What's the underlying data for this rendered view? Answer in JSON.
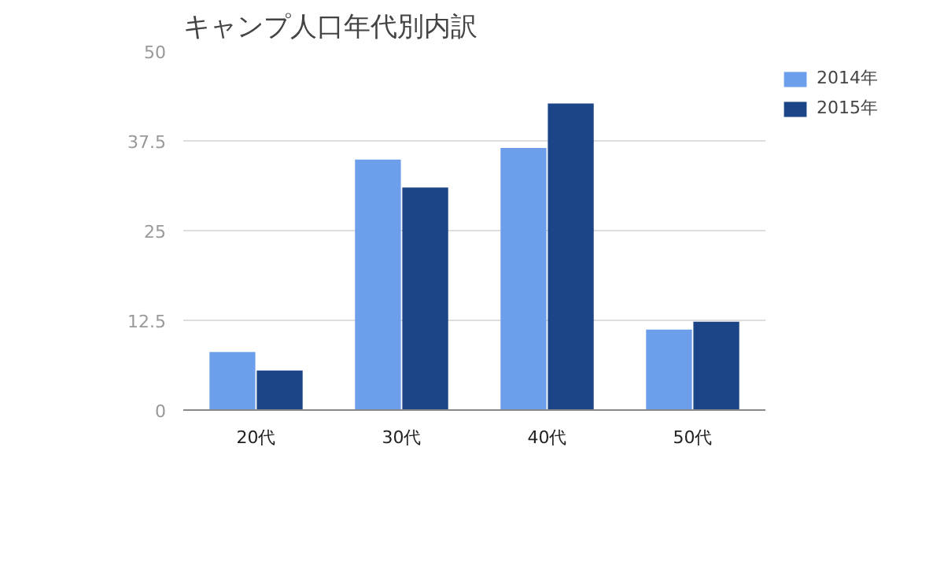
{
  "chart_data": {
    "type": "bar",
    "title": "キャンプ人口年代別内訳",
    "categories": [
      "20代",
      "30代",
      "40代",
      "50代"
    ],
    "series": [
      {
        "name": "2014年",
        "color": "#6d9eeb",
        "values": [
          8.1,
          34.9,
          36.5,
          11.2
        ]
      },
      {
        "name": "2015年",
        "color": "#1c4587",
        "values": [
          5.5,
          31.0,
          42.7,
          12.3
        ]
      }
    ],
    "ylim": [
      0,
      50
    ],
    "yticks": [
      0,
      12.5,
      25,
      37.5,
      50
    ],
    "grid": "y",
    "legend": "top right"
  }
}
